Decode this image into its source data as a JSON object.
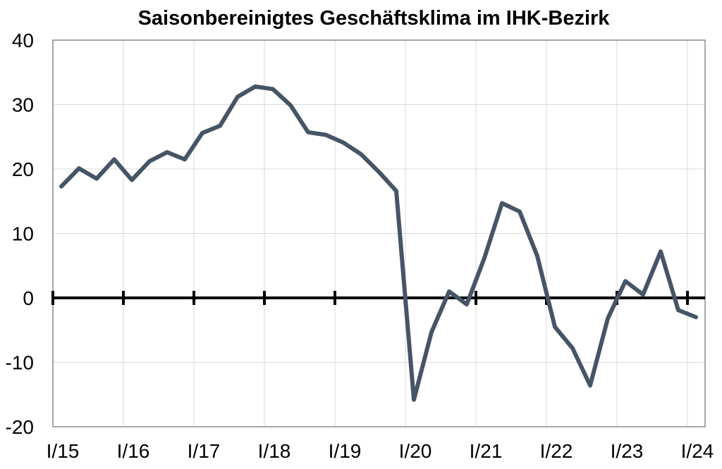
{
  "chart_data": {
    "type": "line",
    "title": "Saisonbereinigtes Geschäftsklima im IHK-Bezirk",
    "xlabel": "",
    "ylabel": "",
    "ylim": [
      -20,
      40
    ],
    "yticks": [
      "40",
      "30",
      "20",
      "10",
      "0",
      "-10",
      "-20"
    ],
    "ytick_values": [
      40,
      30,
      20,
      10,
      0,
      -10,
      -20
    ],
    "xticks": [
      "I/15",
      "I/16",
      "I/17",
      "I/18",
      "I/19",
      "I/20",
      "I/21",
      "I/22",
      "I/23",
      "I/24"
    ],
    "grid": true,
    "series": [
      {
        "color": "#465566",
        "x": [
          "I/15",
          "II/15",
          "III/15",
          "IV/15",
          "I/16",
          "II/16",
          "III/16",
          "IV/16",
          "I/17",
          "II/17",
          "III/17",
          "IV/17",
          "I/18",
          "II/18",
          "III/18",
          "IV/18",
          "I/19",
          "II/19",
          "III/19",
          "IV/19",
          "I/20",
          "II/20",
          "III/20",
          "IV/20",
          "I/21",
          "II/21",
          "III/21",
          "IV/21",
          "I/22",
          "II/22",
          "III/22",
          "IV/22",
          "I/23",
          "II/23",
          "III/23",
          "IV/23",
          "I/24"
        ],
        "values": [
          17.3,
          20.1,
          18.5,
          21.5,
          18.3,
          21.2,
          22.6,
          21.5,
          25.6,
          26.7,
          31.2,
          32.8,
          32.4,
          29.9,
          25.7,
          25.3,
          24.1,
          22.3,
          19.6,
          16.6,
          -15.8,
          -5.3,
          1.0,
          -1.0,
          6.2,
          14.7,
          13.4,
          6.5,
          -4.5,
          -7.8,
          -13.6,
          -3.2,
          2.6,
          0.5,
          7.2,
          -1.9,
          -3.0
        ]
      }
    ]
  }
}
